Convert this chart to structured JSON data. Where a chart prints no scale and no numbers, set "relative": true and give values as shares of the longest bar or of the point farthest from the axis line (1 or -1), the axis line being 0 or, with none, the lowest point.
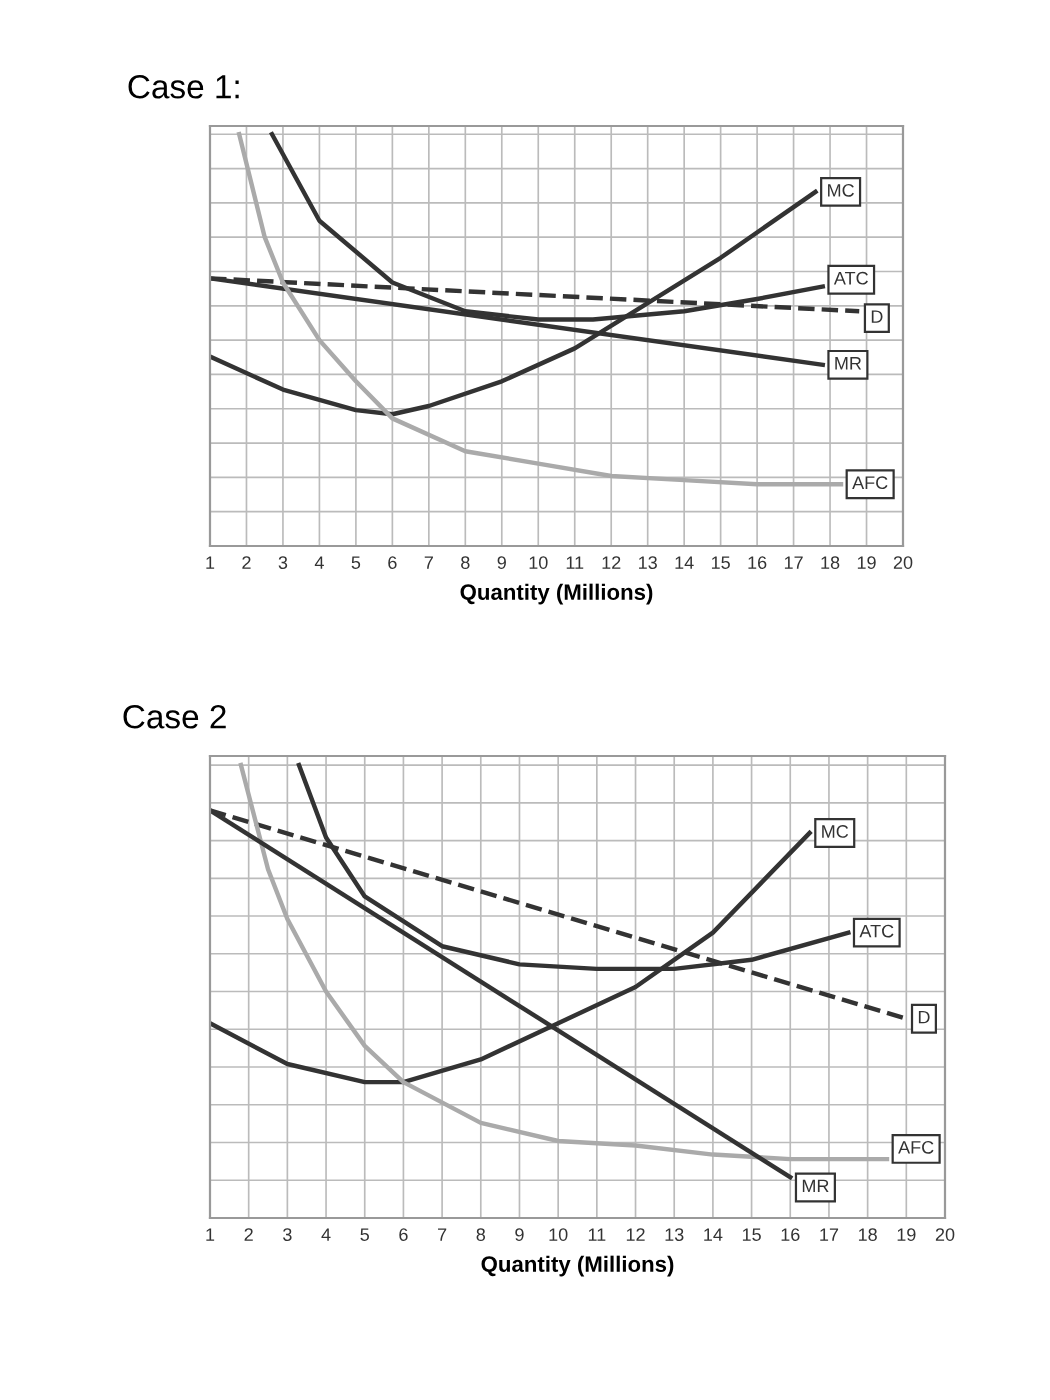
{
  "chart_data": [
    {
      "type": "line",
      "title": "Case 1:",
      "xlabel": "Quantity (Millions)",
      "relative": true,
      "grid": true,
      "legend": false,
      "marker": "none",
      "xlim": [
        1,
        20
      ],
      "xticks": [
        1,
        2,
        3,
        4,
        5,
        6,
        7,
        8,
        9,
        10,
        11,
        12,
        13,
        14,
        15,
        16,
        17,
        18,
        19,
        20
      ],
      "series": [
        {
          "name": "MC",
          "color": "#333333",
          "line_style": "solid",
          "x": [
            1,
            3,
            5,
            6,
            7,
            9,
            11,
            13,
            15,
            17.6
          ],
          "values": [
            0.46,
            0.38,
            0.33,
            0.32,
            0.34,
            0.4,
            0.48,
            0.59,
            0.7,
            0.86
          ]
        },
        {
          "name": "ATC",
          "color": "#333333",
          "line_style": "solid",
          "x": [
            2.7,
            4,
            6,
            8,
            10,
            11.5,
            14,
            16,
            17.8
          ],
          "values": [
            1.0,
            0.79,
            0.64,
            0.57,
            0.55,
            0.55,
            0.57,
            0.6,
            0.63
          ]
        },
        {
          "name": "D",
          "color": "#333333",
          "line_style": "dashed",
          "x": [
            1,
            18.8
          ],
          "values": [
            0.65,
            0.57
          ]
        },
        {
          "name": "MR",
          "color": "#333333",
          "line_style": "solid",
          "x": [
            1,
            17.8
          ],
          "values": [
            0.65,
            0.44
          ]
        },
        {
          "name": "AFC",
          "color": "#aaaaaa",
          "line_style": "solid",
          "x": [
            1.8,
            2.5,
            3,
            4,
            5,
            6,
            8,
            10,
            12,
            14,
            16,
            18.3
          ],
          "values": [
            1.0,
            0.75,
            0.64,
            0.5,
            0.4,
            0.31,
            0.23,
            0.2,
            0.17,
            0.16,
            0.15,
            0.15
          ]
        }
      ]
    },
    {
      "type": "line",
      "title": "Case 2",
      "xlabel": "Quantity (Millions)",
      "relative": true,
      "grid": true,
      "legend": false,
      "marker": "none",
      "xlim": [
        1,
        20
      ],
      "xticks": [
        1,
        2,
        3,
        4,
        5,
        6,
        7,
        8,
        9,
        10,
        11,
        12,
        13,
        14,
        15,
        16,
        17,
        18,
        19,
        20
      ],
      "series": [
        {
          "name": "MC",
          "color": "#333333",
          "line_style": "solid",
          "x": [
            1,
            3,
            5,
            6,
            8,
            10,
            12,
            14,
            16.5
          ],
          "values": [
            0.43,
            0.34,
            0.3,
            0.3,
            0.35,
            0.43,
            0.51,
            0.63,
            0.85
          ]
        },
        {
          "name": "ATC",
          "color": "#333333",
          "line_style": "solid",
          "x": [
            3.3,
            4,
            5,
            7,
            9,
            11,
            13,
            15,
            17.5
          ],
          "values": [
            1.0,
            0.84,
            0.71,
            0.6,
            0.56,
            0.55,
            0.55,
            0.57,
            0.63
          ]
        },
        {
          "name": "D",
          "color": "#333333",
          "line_style": "dashed",
          "x": [
            1,
            19
          ],
          "values": [
            0.9,
            0.44
          ]
        },
        {
          "name": "AFC",
          "color": "#aaaaaa",
          "line_style": "solid",
          "x": [
            1.8,
            2.5,
            3,
            4,
            5,
            6,
            8,
            10,
            12,
            14,
            16,
            18.5
          ],
          "values": [
            1.0,
            0.77,
            0.66,
            0.5,
            0.38,
            0.3,
            0.21,
            0.17,
            0.16,
            0.14,
            0.13,
            0.13
          ]
        },
        {
          "name": "MR",
          "color": "#333333",
          "line_style": "solid",
          "x": [
            1,
            16
          ],
          "values": [
            0.9,
            0.09
          ]
        }
      ]
    }
  ]
}
